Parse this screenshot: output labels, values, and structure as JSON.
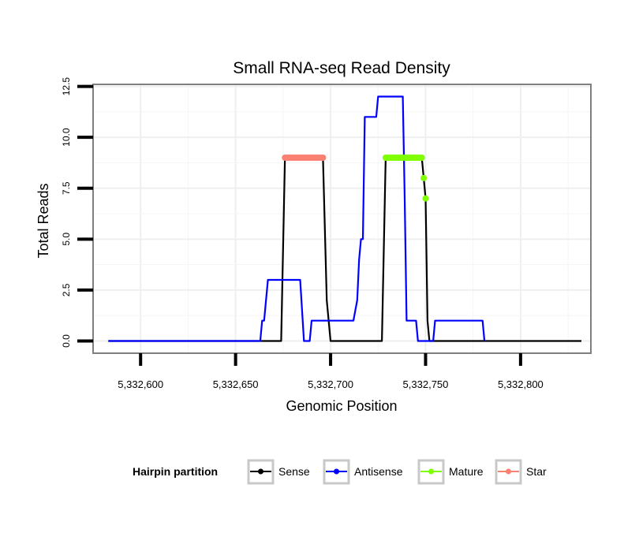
{
  "chart_data": {
    "type": "line",
    "title": "Small RNA-seq Read Density",
    "xlabel": "Genomic Position",
    "ylabel": "Total Reads",
    "xlim": [
      5332575,
      5332837
    ],
    "ylim": [
      -0.6,
      12.6
    ],
    "x_ticks": [
      5332600,
      5332650,
      5332700,
      5332750,
      5332800
    ],
    "x_tick_labels": [
      "5,332,600",
      "5,332,650",
      "5,332,700",
      "5,332,750",
      "5,332,800"
    ],
    "y_ticks": [
      0,
      2.5,
      5,
      7.5,
      10,
      12.5
    ],
    "y_tick_labels": [
      "0.0",
      "2.5",
      "5.0",
      "7.5",
      "10.0",
      "12.5"
    ],
    "grid": true,
    "legend_title": "Hairpin partition",
    "legend_position": "bottom",
    "series": [
      {
        "name": "Sense",
        "color": "#000000",
        "style": "line",
        "points": [
          [
            5332583,
            0
          ],
          [
            5332674,
            0
          ],
          [
            5332676,
            9
          ],
          [
            5332696,
            9
          ],
          [
            5332698,
            2
          ],
          [
            5332700,
            0
          ],
          [
            5332727,
            0
          ],
          [
            5332729,
            9
          ],
          [
            5332748,
            9
          ],
          [
            5332750,
            7
          ],
          [
            5332751,
            1
          ],
          [
            5332752,
            0
          ],
          [
            5332832,
            0
          ]
        ]
      },
      {
        "name": "Antisense",
        "color": "#0000ff",
        "style": "line",
        "points": [
          [
            5332583,
            0
          ],
          [
            5332663,
            0
          ],
          [
            5332664,
            1
          ],
          [
            5332665,
            1
          ],
          [
            5332667,
            3
          ],
          [
            5332684,
            3
          ],
          [
            5332686,
            0
          ],
          [
            5332689,
            0
          ],
          [
            5332690,
            1
          ],
          [
            5332712,
            1
          ],
          [
            5332714,
            2
          ],
          [
            5332715,
            4
          ],
          [
            5332716,
            5
          ],
          [
            5332717,
            5
          ],
          [
            5332718,
            11
          ],
          [
            5332724,
            11
          ],
          [
            5332725,
            12
          ],
          [
            5332738,
            12
          ],
          [
            5332739,
            7
          ],
          [
            5332740,
            1
          ],
          [
            5332745,
            1
          ],
          [
            5332746,
            0
          ],
          [
            5332754,
            0
          ],
          [
            5332755,
            1
          ],
          [
            5332780,
            1
          ],
          [
            5332781,
            0
          ]
        ]
      },
      {
        "name": "Mature",
        "color": "#7fff00",
        "style": "points",
        "points": [
          [
            5332729,
            9
          ],
          [
            5332730,
            9
          ],
          [
            5332731,
            9
          ],
          [
            5332732,
            9
          ],
          [
            5332733,
            9
          ],
          [
            5332734,
            9
          ],
          [
            5332735,
            9
          ],
          [
            5332736,
            9
          ],
          [
            5332737,
            9
          ],
          [
            5332738,
            9
          ],
          [
            5332739,
            9
          ],
          [
            5332740,
            9
          ],
          [
            5332741,
            9
          ],
          [
            5332742,
            9
          ],
          [
            5332743,
            9
          ],
          [
            5332744,
            9
          ],
          [
            5332745,
            9
          ],
          [
            5332746,
            9
          ],
          [
            5332747,
            9
          ],
          [
            5332748,
            9
          ],
          [
            5332749,
            8
          ],
          [
            5332750,
            7
          ]
        ]
      },
      {
        "name": "Star",
        "color": "#fa8072",
        "style": "points",
        "points": [
          [
            5332676,
            9
          ],
          [
            5332677,
            9
          ],
          [
            5332678,
            9
          ],
          [
            5332679,
            9
          ],
          [
            5332680,
            9
          ],
          [
            5332681,
            9
          ],
          [
            5332682,
            9
          ],
          [
            5332683,
            9
          ],
          [
            5332684,
            9
          ],
          [
            5332685,
            9
          ],
          [
            5332686,
            9
          ],
          [
            5332687,
            9
          ],
          [
            5332688,
            9
          ],
          [
            5332689,
            9
          ],
          [
            5332690,
            9
          ],
          [
            5332691,
            9
          ],
          [
            5332692,
            9
          ],
          [
            5332693,
            9
          ],
          [
            5332694,
            9
          ],
          [
            5332695,
            9
          ],
          [
            5332696,
            9
          ]
        ]
      }
    ]
  }
}
